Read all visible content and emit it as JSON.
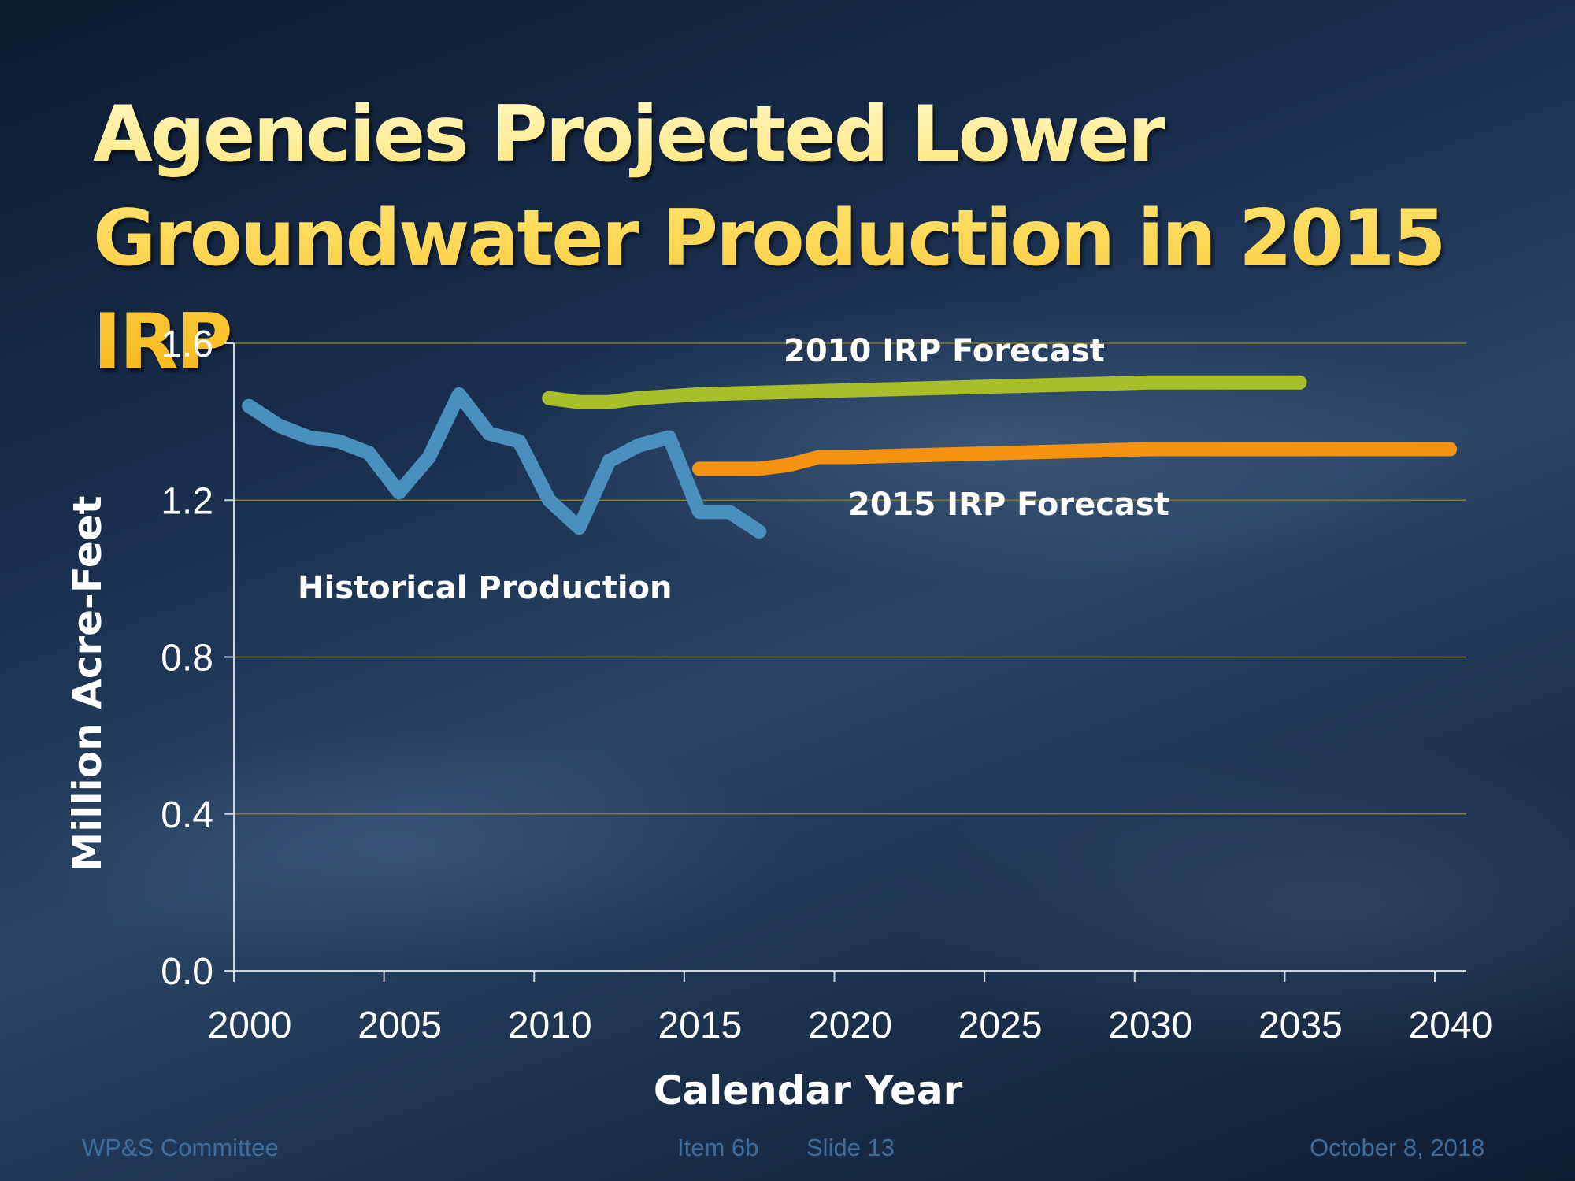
{
  "slide": {
    "title_line1": "Agencies Projected Lower",
    "title_line2": "Groundwater Production in 2015 IRP",
    "footer": {
      "left": "WP&S Committee",
      "item": "Item 6b",
      "slide": "Slide 13",
      "date": "October 8, 2018"
    }
  },
  "colors": {
    "historical": "#4a90bf",
    "irp2010": "#a8bf2a",
    "irp2015": "#f5920f",
    "gridline": "#8a7a1e",
    "axis": "#d0d4dc"
  },
  "chart_data": {
    "type": "line",
    "title": "Agencies Projected Lower Groundwater Production in 2015 IRP",
    "xlabel": "Calendar Year",
    "ylabel": "Million Acre-Feet",
    "xlim": [
      2000,
      2041
    ],
    "ylim": [
      0,
      1.6
    ],
    "x_ticks": [
      2000,
      2005,
      2010,
      2015,
      2020,
      2025,
      2030,
      2035,
      2040
    ],
    "y_ticks": [
      {
        "value": 0.0,
        "label": "0.0"
      },
      {
        "value": 0.4,
        "label": "0.4"
      },
      {
        "value": 0.8,
        "label": "0.8"
      },
      {
        "value": 1.2,
        "label": "1.2"
      },
      {
        "value": 1.6,
        "label": "1.6"
      }
    ],
    "grid": true,
    "series": [
      {
        "name": "Historical Production",
        "color": "#4a90bf",
        "x": [
          2000.5,
          2001.5,
          2002.5,
          2003.5,
          2004.5,
          2005.5,
          2006.5,
          2007.5,
          2008.5,
          2009.5,
          2010.5,
          2011.5,
          2012.5,
          2013.5,
          2014.5,
          2015.5,
          2016.5,
          2017.5
        ],
        "values": [
          1.44,
          1.39,
          1.36,
          1.35,
          1.32,
          1.22,
          1.31,
          1.47,
          1.37,
          1.35,
          1.2,
          1.13,
          1.3,
          1.34,
          1.36,
          1.17,
          1.17,
          1.12
        ]
      },
      {
        "name": "2010 IRP Forecast",
        "color": "#a8bf2a",
        "x": [
          2010.5,
          2011.5,
          2012.5,
          2013.5,
          2015.5,
          2020.5,
          2025.5,
          2030.5,
          2035.5
        ],
        "values": [
          1.46,
          1.45,
          1.45,
          1.46,
          1.47,
          1.48,
          1.49,
          1.5,
          1.5
        ]
      },
      {
        "name": "2015 IRP Forecast",
        "color": "#f5920f",
        "x": [
          2015.5,
          2016.5,
          2017.5,
          2018.5,
          2019.5,
          2020.5,
          2025.5,
          2030.5,
          2035.5,
          2040.5
        ],
        "values": [
          1.28,
          1.28,
          1.28,
          1.29,
          1.31,
          1.31,
          1.32,
          1.33,
          1.33,
          1.33
        ]
      }
    ]
  }
}
